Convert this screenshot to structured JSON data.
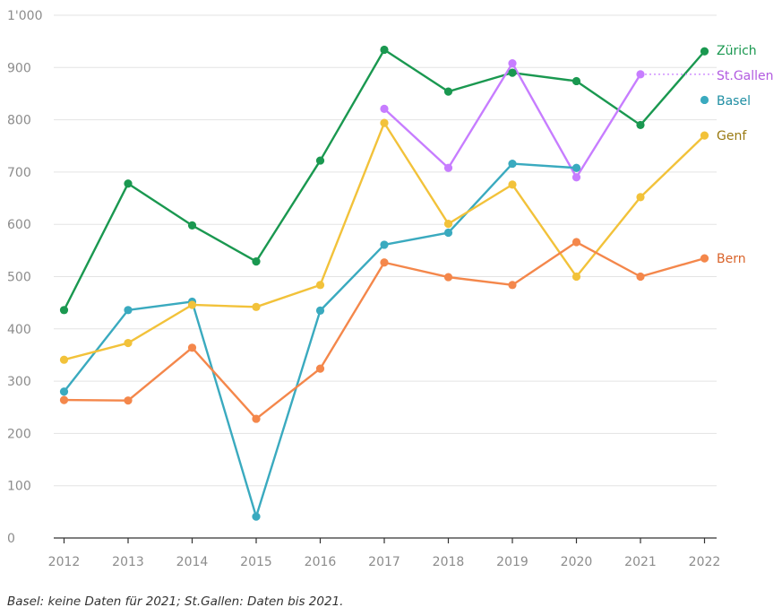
{
  "chart_data": {
    "type": "line",
    "x": [
      2012,
      2013,
      2014,
      2015,
      2016,
      2017,
      2018,
      2019,
      2020,
      2021,
      2022
    ],
    "x_tick_labels": [
      "2012",
      "2013",
      "2014",
      "2015",
      "2016",
      "2017",
      "2018",
      "2019",
      "2020",
      "2021",
      "2022"
    ],
    "ylim": [
      0,
      1000
    ],
    "y_ticks": [
      0,
      100,
      200,
      300,
      400,
      500,
      600,
      700,
      800,
      900,
      1000
    ],
    "y_tick_labels": [
      "0",
      "100",
      "200",
      "300",
      "400",
      "500",
      "600",
      "700",
      "800",
      "900",
      "1'000"
    ],
    "grid": true,
    "series": [
      {
        "name": "Zürich",
        "color": "#1a9850",
        "values": [
          436,
          678,
          598,
          529,
          722,
          934,
          854,
          890,
          874,
          790,
          931
        ]
      },
      {
        "name": "St.Gallen",
        "color": "#c77dff",
        "values": [
          null,
          null,
          null,
          null,
          null,
          821,
          708,
          908,
          690,
          887,
          null
        ],
        "dotted_extension": 887
      },
      {
        "name": "Basel",
        "color": "#3aaabf",
        "values": [
          280,
          436,
          452,
          41,
          435,
          561,
          584,
          716,
          708,
          null,
          838
        ]
      },
      {
        "name": "Genf",
        "color": "#f2c23a",
        "values": [
          341,
          373,
          446,
          442,
          484,
          794,
          601,
          676,
          500,
          652,
          770
        ]
      },
      {
        "name": "Bern",
        "color": "#f4874b",
        "values": [
          264,
          263,
          364,
          228,
          324,
          527,
          499,
          484,
          566,
          500,
          535
        ]
      }
    ],
    "series_label_colors": {
      "Zürich": "#1a9850",
      "St.Gallen": "#b25be0",
      "Basel": "#1f8ea3",
      "Genf": "#9a7a12",
      "Bern": "#d9632a"
    }
  },
  "footnote": "Basel: keine Daten für 2021; St.Gallen: Daten bis 2021."
}
